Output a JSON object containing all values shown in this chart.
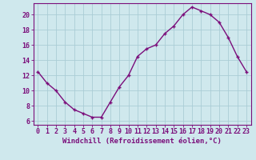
{
  "x": [
    0,
    1,
    2,
    3,
    4,
    5,
    6,
    7,
    8,
    9,
    10,
    11,
    12,
    13,
    14,
    15,
    16,
    17,
    18,
    19,
    20,
    21,
    22,
    23
  ],
  "y": [
    12.5,
    11.0,
    10.0,
    8.5,
    7.5,
    7.0,
    6.5,
    6.5,
    8.5,
    10.5,
    12.0,
    14.5,
    15.5,
    16.0,
    17.5,
    18.5,
    20.0,
    21.0,
    20.5,
    20.0,
    19.0,
    17.0,
    14.5,
    12.5
  ],
  "line_color": "#7b0e7b",
  "marker": "+",
  "bg_color": "#cfe8ed",
  "grid_color": "#aacdd6",
  "xlabel": "Windchill (Refroidissement éolien,°C)",
  "ylim": [
    5.5,
    21.5
  ],
  "xlim": [
    -0.5,
    23.5
  ],
  "yticks": [
    6,
    8,
    10,
    12,
    14,
    16,
    18,
    20
  ],
  "xticks": [
    0,
    1,
    2,
    3,
    4,
    5,
    6,
    7,
    8,
    9,
    10,
    11,
    12,
    13,
    14,
    15,
    16,
    17,
    18,
    19,
    20,
    21,
    22,
    23
  ],
  "xlabel_fontsize": 6.5,
  "tick_fontsize": 6,
  "line_width": 1.0,
  "marker_size": 3.5
}
